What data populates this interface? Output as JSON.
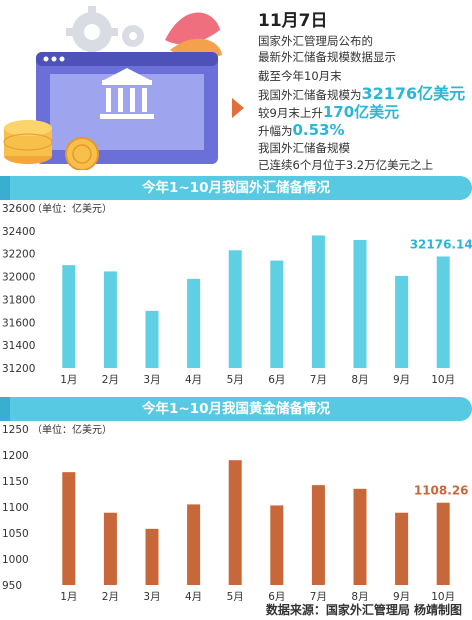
{
  "header": {
    "date": "11月7日",
    "intro_line1": "国家外汇管理局公布的",
    "intro_line2": "最新外汇储备规模数据显示"
  },
  "summary": {
    "l1": "截至今年10月末",
    "l2_pre": "我国外汇储备规模为",
    "l2_val": "32176亿美元",
    "l3_pre": "较9月末上升",
    "l3_val": "170亿美元",
    "l4_pre": "升幅为",
    "l4_val": "0.53%",
    "l5": "我国外汇储备规模",
    "l6": "已连续6个月位于3.2万亿美元之上"
  },
  "sections": {
    "chart1_title": "今年1~10月我国外汇储备情况",
    "chart2_title": "今年1~10月我国黄金储备情况"
  },
  "colors": {
    "accent": "#2bb6d6",
    "bar1": "#5fd0e3",
    "bar2": "#c8683a",
    "header_bar": "#58c9e3"
  },
  "icons": [
    "gear-icon",
    "bank-icon",
    "coins-icon",
    "arrow-right-icon"
  ],
  "chart_data": [
    {
      "type": "bar",
      "title": "今年1~10月我国外汇储备情况",
      "unit_label": "（单位：亿美元）",
      "categories": [
        "1月",
        "2月",
        "3月",
        "4月",
        "5月",
        "6月",
        "7月",
        "8月",
        "9月",
        "10月"
      ],
      "values": [
        32100,
        32045,
        31700,
        31980,
        32230,
        32140,
        32360,
        32320,
        32006,
        32176.14
      ],
      "highlight_label": "32176.14",
      "ylim": [
        31200,
        32600
      ],
      "yticks": [
        "31200",
        "31400",
        "31600",
        "31800",
        "32000",
        "32200",
        "32400",
        "32600"
      ]
    },
    {
      "type": "bar",
      "title": "今年1~10月我国黄金储备情况",
      "unit_label": "（单位：亿美元）",
      "categories": [
        "1月",
        "2月",
        "3月",
        "4月",
        "5月",
        "6月",
        "7月",
        "8月",
        "9月",
        "10月"
      ],
      "values": [
        1167,
        1089,
        1058,
        1105,
        1190,
        1103,
        1142,
        1135,
        1089,
        1108.26
      ],
      "highlight_label": "1108.26",
      "ylim": [
        950,
        1250
      ],
      "yticks": [
        "950",
        "1000",
        "1050",
        "1100",
        "1150",
        "1200",
        "1250"
      ]
    }
  ],
  "footer": {
    "source": "数据来源：国家外汇管理局  杨靖制图"
  }
}
